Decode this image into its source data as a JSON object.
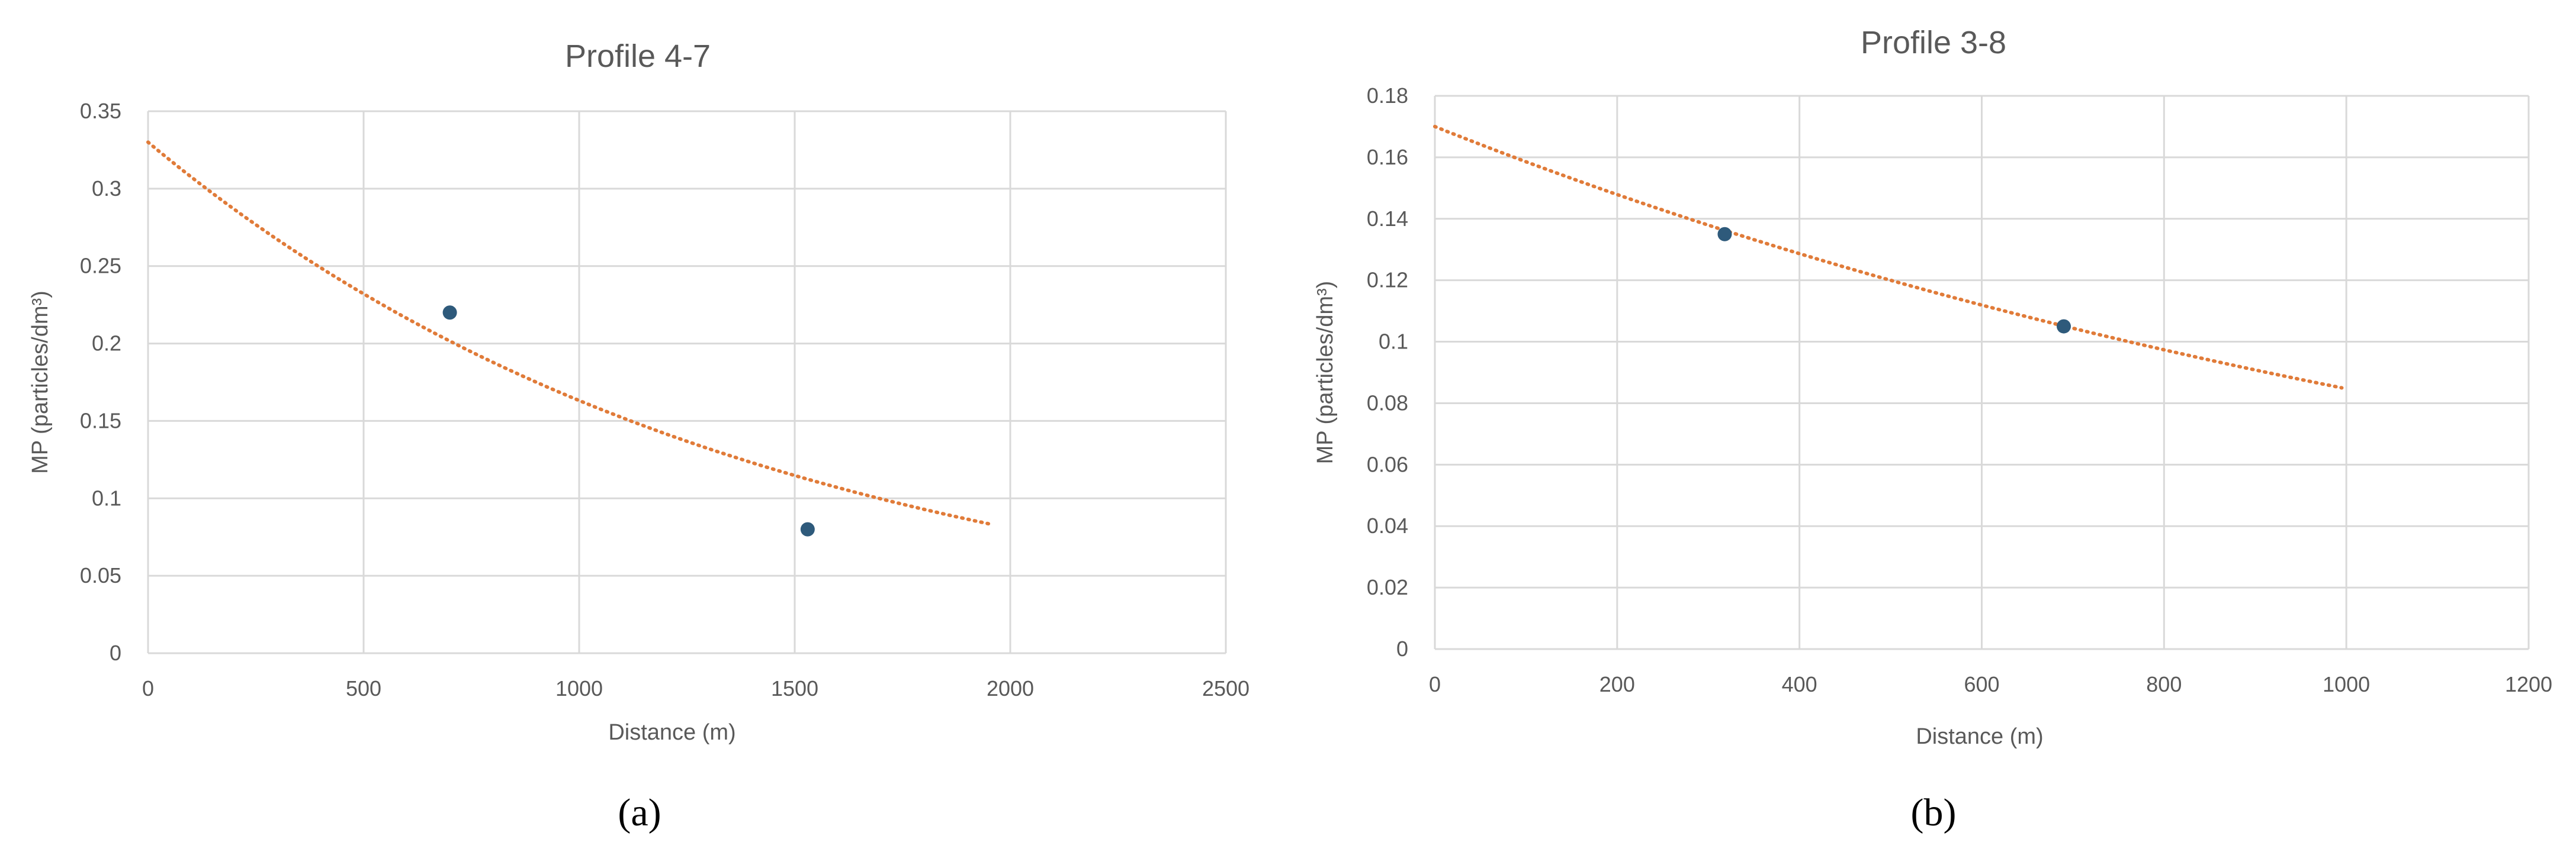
{
  "chart_data": [
    {
      "type": "scatter",
      "title": "Profile 4-7",
      "xlabel": "Distance (m)",
      "ylabel": "MP (particles/dm³)",
      "panel_label": "(a)",
      "xlim": [
        0,
        2500
      ],
      "ylim": [
        0,
        0.35
      ],
      "xticks": [
        0,
        500,
        1000,
        1500,
        2000,
        2500
      ],
      "xtick_labels": [
        "0",
        "500",
        "1000",
        "1500",
        "2000",
        "2500"
      ],
      "yticks": [
        0,
        0.05,
        0.1,
        0.15,
        0.2,
        0.25,
        0.3,
        0.35
      ],
      "ytick_labels": [
        "0",
        "0.05",
        "0.1",
        "0.15",
        "0.2",
        "0.25",
        "0.3",
        "0.35"
      ],
      "grid": true,
      "legend": "none",
      "points": [
        {
          "x": 700,
          "y": 0.22
        },
        {
          "x": 1530,
          "y": 0.08
        }
      ],
      "trendline": {
        "style": "dotted",
        "model": "exponential",
        "x": [
          0,
          1960
        ],
        "y": [
          0.33,
          0.083
        ]
      },
      "colors": {
        "points": "#2e5a7b",
        "trendline": "#e07b39",
        "grid": "#d9d9d9",
        "text": "#595959"
      }
    },
    {
      "type": "scatter",
      "title": "Profile 3-8",
      "xlabel": "Distance (m)",
      "ylabel": "MP (particles/dm³)",
      "panel_label": "(b)",
      "xlim": [
        0,
        1200
      ],
      "ylim": [
        0,
        0.18
      ],
      "xticks": [
        0,
        200,
        400,
        600,
        800,
        1000,
        1200
      ],
      "xtick_labels": [
        "0",
        "200",
        "400",
        "600",
        "800",
        "1000",
        "1200"
      ],
      "yticks": [
        0,
        0.02,
        0.04,
        0.06,
        0.08,
        0.1,
        0.12,
        0.14,
        0.16,
        0.18
      ],
      "ytick_labels": [
        "0",
        "0.02",
        "0.04",
        "0.06",
        "0.08",
        "0.1",
        "0.12",
        "0.14",
        "0.16",
        "0.18"
      ],
      "grid": true,
      "legend": "none",
      "points": [
        {
          "x": 318,
          "y": 0.135
        },
        {
          "x": 690,
          "y": 0.105
        }
      ],
      "trendline": {
        "style": "dotted",
        "model": "exponential",
        "x": [
          0,
          995
        ],
        "y": [
          0.17,
          0.085
        ]
      },
      "colors": {
        "points": "#2e5a7b",
        "trendline": "#e07b39",
        "grid": "#d9d9d9",
        "text": "#595959"
      }
    }
  ]
}
